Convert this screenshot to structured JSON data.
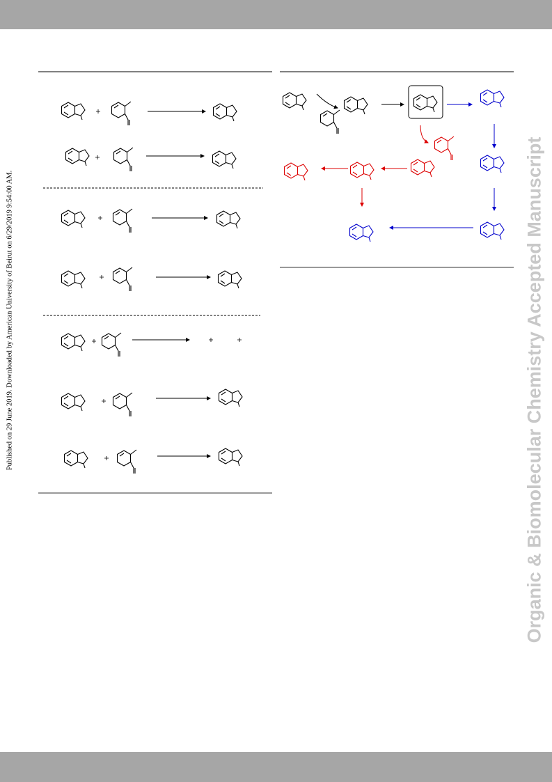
{
  "side_note": "Published on 29 June 2019. Downloaded by American University of Beirut on 6/29/2019 9:54:00 AM.",
  "watermark": "Organic & Biomolecular Chemistry Accepted Manuscript"
}
